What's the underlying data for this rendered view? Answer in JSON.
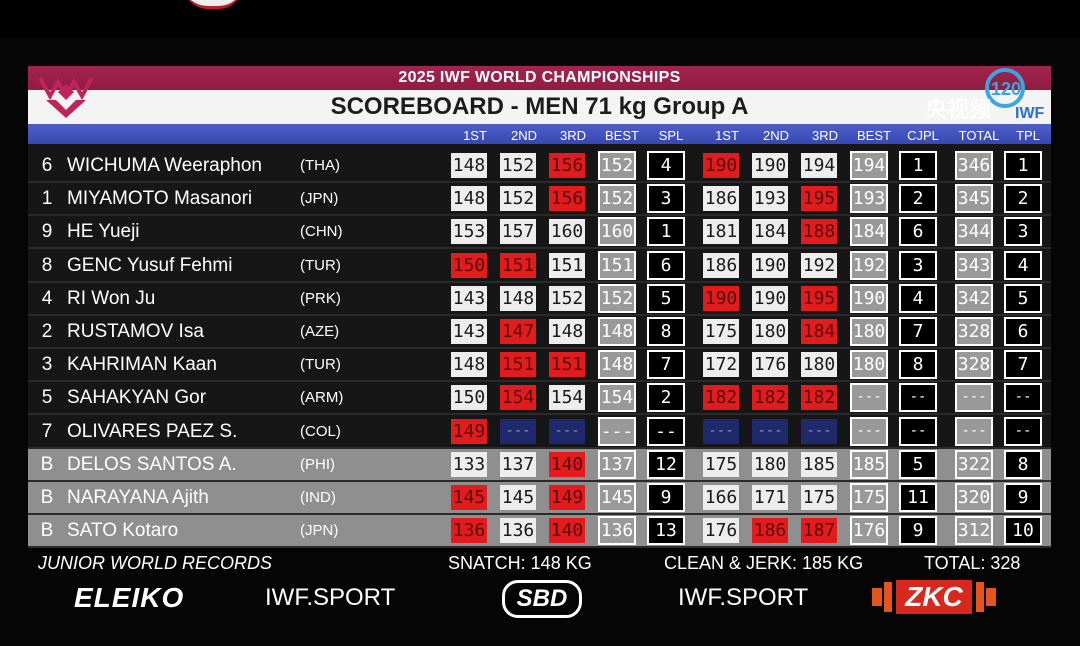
{
  "header": {
    "event": "2025 IWF WORLD CHAMPIONSHIPS",
    "title": "SCOREBOARD - MEN 71 kg Group A",
    "watermark": "央视频"
  },
  "columns": [
    "1ST",
    "2ND",
    "3RD",
    "BEST",
    "SPL",
    "1ST",
    "2ND",
    "3RD",
    "BEST",
    "CJPL",
    "TOTAL",
    "TPL"
  ],
  "athletes": [
    {
      "lot": "6",
      "name": "WICHUMA Weeraphon",
      "nat": "(THA)",
      "group": "dark",
      "sn": [
        [
          "148",
          "good"
        ],
        [
          "152",
          "good"
        ],
        [
          "156",
          "fail"
        ]
      ],
      "snBest": "152",
      "spl": "4",
      "cj": [
        [
          "190",
          "fail"
        ],
        [
          "190",
          "good"
        ],
        [
          "194",
          "good"
        ]
      ],
      "cjBest": "194",
      "cjpl": "1",
      "total": "346",
      "tpl": "1"
    },
    {
      "lot": "1",
      "name": "MIYAMOTO Masanori",
      "nat": "(JPN)",
      "group": "dark",
      "sn": [
        [
          "148",
          "good"
        ],
        [
          "152",
          "good"
        ],
        [
          "156",
          "fail"
        ]
      ],
      "snBest": "152",
      "spl": "3",
      "cj": [
        [
          "186",
          "good"
        ],
        [
          "193",
          "good"
        ],
        [
          "195",
          "fail"
        ]
      ],
      "cjBest": "193",
      "cjpl": "2",
      "total": "345",
      "tpl": "2"
    },
    {
      "lot": "9",
      "name": "HE Yueji",
      "nat": "(CHN)",
      "group": "dark",
      "sn": [
        [
          "153",
          "good"
        ],
        [
          "157",
          "good"
        ],
        [
          "160",
          "good"
        ]
      ],
      "snBest": "160",
      "spl": "1",
      "cj": [
        [
          "181",
          "good"
        ],
        [
          "184",
          "good"
        ],
        [
          "188",
          "fail"
        ]
      ],
      "cjBest": "184",
      "cjpl": "6",
      "total": "344",
      "tpl": "3"
    },
    {
      "lot": "8",
      "name": "GENC Yusuf Fehmi",
      "nat": "(TUR)",
      "group": "dark",
      "sn": [
        [
          "150",
          "fail"
        ],
        [
          "151",
          "fail"
        ],
        [
          "151",
          "good"
        ]
      ],
      "snBest": "151",
      "spl": "6",
      "cj": [
        [
          "186",
          "good"
        ],
        [
          "190",
          "good"
        ],
        [
          "192",
          "good"
        ]
      ],
      "cjBest": "192",
      "cjpl": "3",
      "total": "343",
      "tpl": "4"
    },
    {
      "lot": "4",
      "name": "RI Won Ju",
      "nat": "(PRK)",
      "group": "dark",
      "sn": [
        [
          "143",
          "good"
        ],
        [
          "148",
          "good"
        ],
        [
          "152",
          "good"
        ]
      ],
      "snBest": "152",
      "spl": "5",
      "cj": [
        [
          "190",
          "fail"
        ],
        [
          "190",
          "good"
        ],
        [
          "195",
          "fail"
        ]
      ],
      "cjBest": "190",
      "cjpl": "4",
      "total": "342",
      "tpl": "5"
    },
    {
      "lot": "2",
      "name": "RUSTAMOV Isa",
      "nat": "(AZE)",
      "group": "dark",
      "sn": [
        [
          "143",
          "good"
        ],
        [
          "147",
          "fail"
        ],
        [
          "148",
          "good"
        ]
      ],
      "snBest": "148",
      "spl": "8",
      "cj": [
        [
          "175",
          "good"
        ],
        [
          "180",
          "good"
        ],
        [
          "184",
          "fail"
        ]
      ],
      "cjBest": "180",
      "cjpl": "7",
      "total": "328",
      "tpl": "6"
    },
    {
      "lot": "3",
      "name": "KAHRIMAN Kaan",
      "nat": "(TUR)",
      "group": "dark",
      "sn": [
        [
          "148",
          "good"
        ],
        [
          "151",
          "fail"
        ],
        [
          "151",
          "fail"
        ]
      ],
      "snBest": "148",
      "spl": "7",
      "cj": [
        [
          "172",
          "good"
        ],
        [
          "176",
          "good"
        ],
        [
          "180",
          "good"
        ]
      ],
      "cjBest": "180",
      "cjpl": "8",
      "total": "328",
      "tpl": "7"
    },
    {
      "lot": "5",
      "name": "SAHAKYAN Gor",
      "nat": "(ARM)",
      "group": "dark",
      "sn": [
        [
          "150",
          "good"
        ],
        [
          "154",
          "fail"
        ],
        [
          "154",
          "good"
        ]
      ],
      "snBest": "154",
      "spl": "2",
      "cj": [
        [
          "182",
          "fail"
        ],
        [
          "182",
          "fail"
        ],
        [
          "182",
          "fail"
        ]
      ],
      "cjBest": "---",
      "cjpl": "--",
      "total": "---",
      "tpl": "--"
    },
    {
      "lot": "7",
      "name": "OLIVARES PAEZ S.",
      "nat": "(COL)",
      "group": "dark",
      "sn": [
        [
          "149",
          "fail"
        ],
        [
          "---",
          "pend"
        ],
        [
          "---",
          "pend"
        ]
      ],
      "snBest": "---",
      "spl": "--",
      "cj": [
        [
          "---",
          "pend"
        ],
        [
          "---",
          "pend"
        ],
        [
          "---",
          "pend"
        ]
      ],
      "cjBest": "---",
      "cjpl": "--",
      "total": "---",
      "tpl": "--"
    },
    {
      "lot": "B",
      "name": "DELOS SANTOS A.",
      "nat": "(PHI)",
      "group": "bgrp",
      "sn": [
        [
          "133",
          "good"
        ],
        [
          "137",
          "good"
        ],
        [
          "140",
          "fail"
        ]
      ],
      "snBest": "137",
      "spl": "12",
      "cj": [
        [
          "175",
          "good"
        ],
        [
          "180",
          "good"
        ],
        [
          "185",
          "good"
        ]
      ],
      "cjBest": "185",
      "cjpl": "5",
      "total": "322",
      "tpl": "8"
    },
    {
      "lot": "B",
      "name": "NARAYANA Ajith",
      "nat": "(IND)",
      "group": "bgrp",
      "sn": [
        [
          "145",
          "fail"
        ],
        [
          "145",
          "good"
        ],
        [
          "149",
          "fail"
        ]
      ],
      "snBest": "145",
      "spl": "9",
      "cj": [
        [
          "166",
          "good"
        ],
        [
          "171",
          "good"
        ],
        [
          "175",
          "good"
        ]
      ],
      "cjBest": "175",
      "cjpl": "11",
      "total": "320",
      "tpl": "9"
    },
    {
      "lot": "B",
      "name": "SATO Kotaro",
      "nat": "(JPN)",
      "group": "bgrp",
      "sn": [
        [
          "136",
          "fail"
        ],
        [
          "136",
          "good"
        ],
        [
          "140",
          "fail"
        ]
      ],
      "snBest": "136",
      "spl": "13",
      "cj": [
        [
          "176",
          "good"
        ],
        [
          "186",
          "fail"
        ],
        [
          "187",
          "fail"
        ]
      ],
      "cjBest": "176",
      "cjpl": "9",
      "total": "312",
      "tpl": "10"
    }
  ],
  "records": {
    "label": "JUNIOR WORLD RECORDS",
    "snatch": "SNATCH: 148 KG",
    "cleanjerk": "CLEAN & JERK: 185 KG",
    "total": "TOTAL: 328 KG"
  },
  "sponsors": {
    "eleiko": "ELEIKO",
    "iwf1": "IWF.SPORT",
    "sbd": "SBD",
    "iwf2": "IWF.SPORT",
    "zkc": "ZKC"
  }
}
